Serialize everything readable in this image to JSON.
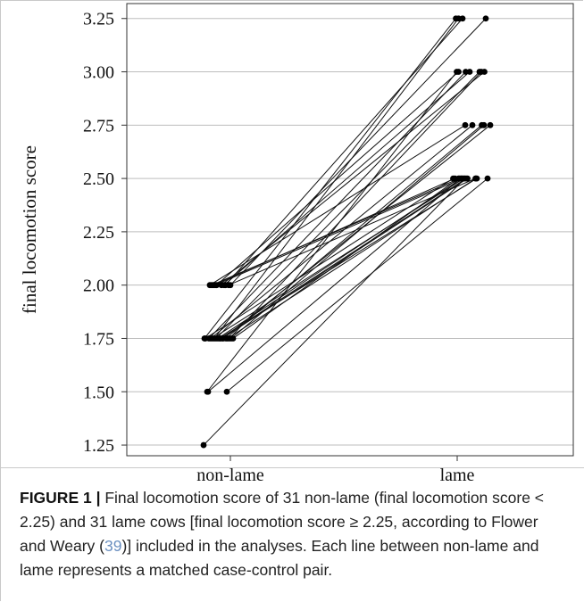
{
  "chart_data": {
    "type": "scatter",
    "ylabel": "final locomotion score",
    "xlabel": "",
    "categories": [
      "non-lame",
      "lame"
    ],
    "y_ticks": [
      "1.25",
      "1.50",
      "1.75",
      "2.00",
      "2.25",
      "2.50",
      "2.75",
      "3.00",
      "3.25"
    ],
    "ylim": [
      1.2,
      3.32
    ],
    "grid": true,
    "pairs": [
      {
        "nl_x": -0.3,
        "nl": 1.25,
        "l_x": 0.085,
        "l": 2.5
      },
      {
        "nl_x": -0.26,
        "nl": 1.5,
        "l_x": -0.005,
        "l": 3.0
      },
      {
        "nl_x": -0.25,
        "nl": 1.5,
        "l_x": 0.04,
        "l": 2.5
      },
      {
        "nl_x": -0.04,
        "nl": 1.5,
        "l_x": 0.34,
        "l": 2.5
      },
      {
        "nl_x": -0.29,
        "nl": 1.75,
        "l_x": -0.015,
        "l": 3.25
      },
      {
        "nl_x": -0.28,
        "nl": 1.75,
        "l_x": -0.045,
        "l": 2.5
      },
      {
        "nl_x": -0.24,
        "nl": 1.75,
        "l_x": 0.095,
        "l": 3.0
      },
      {
        "nl_x": -0.22,
        "nl": 1.75,
        "l_x": 0.17,
        "l": 2.75
      },
      {
        "nl_x": -0.2,
        "nl": 1.75,
        "l_x": 0.075,
        "l": 2.5
      },
      {
        "nl_x": -0.18,
        "nl": 1.75,
        "l_x": 0.015,
        "l": 3.25
      },
      {
        "nl_x": -0.16,
        "nl": 1.75,
        "l_x": 0.25,
        "l": 3.0
      },
      {
        "nl_x": -0.14,
        "nl": 1.75,
        "l_x": 0.05,
        "l": 2.5
      },
      {
        "nl_x": -0.12,
        "nl": 1.75,
        "l_x": 0.22,
        "l": 2.5
      },
      {
        "nl_x": -0.11,
        "nl": 1.75,
        "l_x": 0.1,
        "l": 2.5
      },
      {
        "nl_x": -0.09,
        "nl": 1.75,
        "l_x": 0.115,
        "l": 2.5
      },
      {
        "nl_x": -0.08,
        "nl": 1.75,
        "l_x": 0.37,
        "l": 2.75
      },
      {
        "nl_x": -0.05,
        "nl": 1.75,
        "l_x": 0.275,
        "l": 2.75
      },
      {
        "nl_x": -0.03,
        "nl": 1.75,
        "l_x": 0.21,
        "l": 2.5
      },
      {
        "nl_x": -0.01,
        "nl": 1.75,
        "l_x": 0.27,
        "l": 3.0
      },
      {
        "nl_x": 0.01,
        "nl": 1.75,
        "l_x": 0.3,
        "l": 2.75
      },
      {
        "nl_x": 0.03,
        "nl": 1.75,
        "l_x": 0.015,
        "l": 2.5
      },
      {
        "nl_x": -0.23,
        "nl": 2.0,
        "l_x": 0.09,
        "l": 2.75
      },
      {
        "nl_x": -0.21,
        "nl": 2.0,
        "l_x": 0.025,
        "l": 2.5
      },
      {
        "nl_x": -0.19,
        "nl": 2.0,
        "l_x": -0.025,
        "l": 2.5
      },
      {
        "nl_x": -0.17,
        "nl": 2.0,
        "l_x": 0.06,
        "l": 2.5
      },
      {
        "nl_x": -0.155,
        "nl": 2.0,
        "l_x": 0.015,
        "l": 3.0
      },
      {
        "nl_x": -0.1,
        "nl": 2.0,
        "l_x": 0.305,
        "l": 3.0
      },
      {
        "nl_x": -0.07,
        "nl": 2.0,
        "l_x": 0.14,
        "l": 3.0
      },
      {
        "nl_x": -0.055,
        "nl": 2.0,
        "l_x": 0.06,
        "l": 3.25
      },
      {
        "nl_x": -0.02,
        "nl": 2.0,
        "l_x": 0.205,
        "l": 2.5
      },
      {
        "nl_x": 0.0,
        "nl": 2.0,
        "l_x": 0.32,
        "l": 3.25
      }
    ]
  },
  "caption": {
    "label": "FIGURE 1 |",
    "text_before_ref": " Final locomotion score of 31 non-lame (final locomotion score < 2.25) and 31 lame cows [final locomotion score ≥ 2.25, according to Flower and Weary (",
    "ref": "39",
    "text_after_ref": ")] included in the analyses. Each line between non-lame and lame represents a matched case-control pair."
  }
}
